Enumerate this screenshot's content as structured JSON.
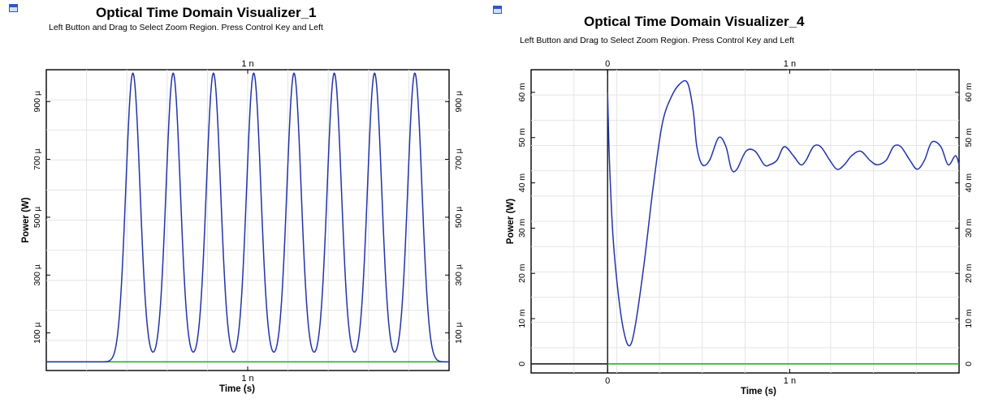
{
  "panels": [
    {
      "title": "Optical Time Domain Visualizer_1",
      "subtitle": "Left Button and Drag to Select Zoom Region. Press Control Key and Left",
      "icon": "visualizer-window-icon"
    },
    {
      "title": "Optical Time Domain Visualizer_4",
      "subtitle": "Left Button and Drag to Select Zoom Region. Press Control Key and Left",
      "icon": "visualizer-window-icon"
    }
  ],
  "chart_data": [
    {
      "type": "line",
      "xlabel": "Time (s)",
      "ylabel": "Power (W)",
      "x_ticks": [
        {
          "value": 1,
          "label": "1 n"
        }
      ],
      "top_ticks": [
        {
          "value": 1,
          "label": "1 n"
        }
      ],
      "y_ticks": [
        {
          "value": 100,
          "label": "100 µ"
        },
        {
          "value": 300,
          "label": "300 µ"
        },
        {
          "value": 500,
          "label": "500 µ"
        },
        {
          "value": 700,
          "label": "700 µ"
        },
        {
          "value": 900,
          "label": "900 µ"
        }
      ],
      "y_unit": "µW",
      "x_unit": "ns",
      "xlim": [
        0,
        2.0
      ],
      "ylim": [
        -30,
        1010
      ],
      "grid": true,
      "axis_color": "#000000",
      "series": [
        {
          "color": "#2233aa",
          "peak_times": [
            0.43,
            0.63,
            0.83,
            1.03,
            1.23,
            1.43,
            1.63,
            1.83
          ],
          "peak_value": 998,
          "baseline": 0,
          "pulse_sigma": 0.035
        },
        {
          "color": "#33aa33",
          "constant": 0
        }
      ]
    },
    {
      "type": "line",
      "xlabel": "Time (s)",
      "ylabel": "Power (W)",
      "x_ticks": [
        {
          "value": 0,
          "label": "0"
        },
        {
          "value": 1,
          "label": "1 n"
        }
      ],
      "top_ticks": [
        {
          "value": 0,
          "label": "0"
        },
        {
          "value": 1,
          "label": "1 n"
        }
      ],
      "y_ticks": [
        {
          "value": 0,
          "label": "0"
        },
        {
          "value": 10,
          "label": "10 m"
        },
        {
          "value": 20,
          "label": "20 m"
        },
        {
          "value": 30,
          "label": "30 m"
        },
        {
          "value": 40,
          "label": "40 m"
        },
        {
          "value": 50,
          "label": "50 m"
        },
        {
          "value": 60,
          "label": "60 m"
        }
      ],
      "y_unit": "mW",
      "x_unit": "ns",
      "xlim": [
        -0.42,
        1.93
      ],
      "ylim": [
        -2,
        65
      ],
      "grid": true,
      "axis_color": "#000000",
      "series": [
        {
          "color": "#2233aa",
          "x": [
            0.0,
            0.01,
            0.03,
            0.06,
            0.09,
            0.12,
            0.15,
            0.2,
            0.25,
            0.3,
            0.35,
            0.4,
            0.44,
            0.47,
            0.49,
            0.52,
            0.56,
            0.61,
            0.65,
            0.68,
            0.71,
            0.76,
            0.81,
            0.86,
            0.89,
            0.93,
            0.97,
            1.02,
            1.06,
            1.09,
            1.13,
            1.17,
            1.22,
            1.26,
            1.3,
            1.34,
            1.39,
            1.44,
            1.48,
            1.53,
            1.57,
            1.61,
            1.66,
            1.7,
            1.74,
            1.78,
            1.83,
            1.87,
            1.91,
            1.93
          ],
          "y": [
            60,
            45,
            28,
            15,
            7,
            4,
            8,
            22,
            39,
            53,
            59,
            62,
            62,
            56,
            48,
            44,
            45,
            50,
            48,
            43,
            43,
            47,
            47,
            44,
            44,
            45,
            48,
            46,
            44,
            45,
            48,
            48,
            45,
            43,
            44,
            46,
            47,
            45,
            44,
            45,
            48,
            48,
            45,
            43,
            45,
            49,
            48,
            44,
            46,
            44
          ]
        },
        {
          "color": "#33aa33",
          "constant": 0,
          "from": 0
        },
        {
          "color": "#222222",
          "constant": 0,
          "to": 0
        }
      ]
    }
  ]
}
